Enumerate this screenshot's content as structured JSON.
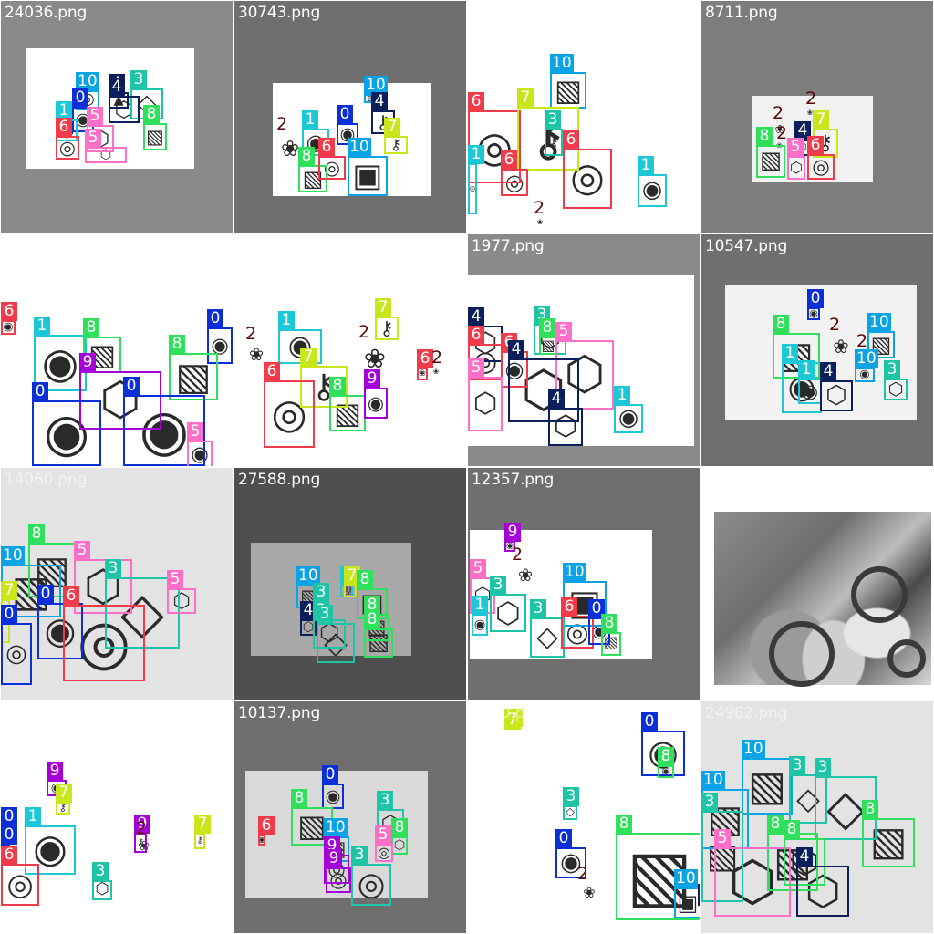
{
  "palette": {
    "0": "#0a2fd6",
    "1": "#1cc7d6",
    "2": "#5a0a0a",
    "3": "#1ec4a6",
    "4": "#0b1f5c",
    "5": "#ff6fc8",
    "6": "#ef3b4a",
    "7": "#c8e61a",
    "8": "#2ee05c",
    "9": "#a600d9",
    "10": "#0aa3e6"
  },
  "tiles": [
    {
      "file": "24036.png",
      "bg": "#8a8a8a",
      "paper": "#ffffff",
      "boxes": [
        {
          "c": "10",
          "d": "shell"
        },
        {
          "c": "4",
          "d": "rock"
        },
        {
          "c": "3",
          "d": "crystal"
        },
        {
          "c": "0",
          "d": "compass"
        },
        {
          "c": "4",
          "d": "gem"
        },
        {
          "c": "1",
          "d": "compass"
        },
        {
          "c": "5",
          "d": "gem"
        },
        {
          "c": "8",
          "d": "map"
        },
        {
          "c": "6",
          "d": "shell"
        },
        {
          "c": "5",
          "d": "gem"
        }
      ]
    },
    {
      "file": "30743.png",
      "bg": "#6f6f6f",
      "paper": "#ffffff",
      "boxes": [
        {
          "c": "10",
          "d": "map"
        },
        {
          "c": "4",
          "d": "key"
        },
        {
          "c": "2",
          "d": "coral"
        },
        {
          "c": "1",
          "d": "compass"
        },
        {
          "c": "0",
          "d": "compass"
        },
        {
          "c": "7",
          "d": "key"
        },
        {
          "c": "8",
          "d": "map"
        },
        {
          "c": "6",
          "d": "shell"
        },
        {
          "c": "10",
          "d": "chest"
        }
      ]
    },
    {
      "file": "3533.png",
      "bg": "#ffffff",
      "paper": "#ffffff",
      "boxes": [
        {
          "c": "10",
          "d": "map"
        },
        {
          "c": "6",
          "d": "shell"
        },
        {
          "c": "7",
          "d": "key"
        },
        {
          "c": "3",
          "d": "key"
        },
        {
          "c": "6",
          "d": "shell"
        },
        {
          "c": "1",
          "d": "compass"
        },
        {
          "c": "6",
          "d": "shell"
        },
        {
          "c": "1",
          "d": "shell"
        },
        {
          "c": "2",
          "d": "coral"
        }
      ]
    },
    {
      "file": "8711.png",
      "bg": "#7d7d7d",
      "paper": "#f2f2f2",
      "boxes": [
        {
          "c": "2",
          "d": "coral"
        },
        {
          "c": "2",
          "d": "coral"
        },
        {
          "c": "7",
          "d": "key"
        },
        {
          "c": "4",
          "d": "gem"
        },
        {
          "c": "2",
          "d": "coral"
        },
        {
          "c": "8",
          "d": "map"
        },
        {
          "c": "5",
          "d": "gem"
        },
        {
          "c": "6",
          "d": "shell"
        }
      ]
    },
    {
      "file": "5519.png",
      "bg": "#ffffff",
      "paper": "#ffffff",
      "boxes": [
        {
          "c": "6",
          "d": "compass"
        },
        {
          "c": "1",
          "d": "compass"
        },
        {
          "c": "8",
          "d": "map"
        },
        {
          "c": "0",
          "d": "compass"
        },
        {
          "c": "8",
          "d": "map"
        },
        {
          "c": "9",
          "d": "gem"
        },
        {
          "c": "0",
          "d": "compass"
        },
        {
          "c": "0",
          "d": "compass"
        },
        {
          "c": "5",
          "d": "compass"
        }
      ]
    },
    {
      "file": "8965.png",
      "bg": "#ffffff",
      "paper": "#ffffff",
      "boxes": [
        {
          "c": "1",
          "d": "compass"
        },
        {
          "c": "7",
          "d": "key"
        },
        {
          "c": "2",
          "d": "coral"
        },
        {
          "c": "2",
          "d": "coral"
        },
        {
          "c": "7",
          "d": "key"
        },
        {
          "c": "6",
          "d": "shell"
        },
        {
          "c": "8",
          "d": "map"
        },
        {
          "c": "9",
          "d": "compass"
        },
        {
          "c": "6",
          "d": "coral"
        },
        {
          "c": "2",
          "d": "coral"
        }
      ]
    },
    {
      "file": "1977.png",
      "bg": "#8a8a8a",
      "paper": "#ffffff",
      "boxes": [
        {
          "c": "4",
          "d": "gem"
        },
        {
          "c": "3",
          "d": "gem"
        },
        {
          "c": "6",
          "d": "shell"
        },
        {
          "c": "6",
          "d": "compass"
        },
        {
          "c": "8",
          "d": "map"
        },
        {
          "c": "5",
          "d": "gem"
        },
        {
          "c": "4",
          "d": "gem"
        },
        {
          "c": "5",
          "d": "gem"
        },
        {
          "c": "4",
          "d": "gem"
        },
        {
          "c": "1",
          "d": "compass"
        }
      ]
    },
    {
      "file": "10547.png",
      "bg": "#6f6f6f",
      "paper": "#f2f2f2",
      "boxes": [
        {
          "c": "0",
          "d": "compass"
        },
        {
          "c": "8",
          "d": "map"
        },
        {
          "c": "2",
          "d": "coral"
        },
        {
          "c": "10",
          "d": "map"
        },
        {
          "c": "2",
          "d": "coral"
        },
        {
          "c": "1",
          "d": "compass"
        },
        {
          "c": "10",
          "d": "compass"
        },
        {
          "c": "3",
          "d": "gem"
        },
        {
          "c": "1",
          "d": "compass"
        },
        {
          "c": "4",
          "d": "gem"
        }
      ]
    },
    {
      "file": "14060.png",
      "bg": "#e3e3e3",
      "paper": "#e3e3e3",
      "boxes": [
        {
          "c": "8",
          "d": "map"
        },
        {
          "c": "5",
          "d": "gem"
        },
        {
          "c": "10",
          "d": "map"
        },
        {
          "c": "3",
          "d": "crystal"
        },
        {
          "c": "5",
          "d": "gem"
        },
        {
          "c": "7",
          "d": "key"
        },
        {
          "c": "0",
          "d": "compass"
        },
        {
          "c": "6",
          "d": "shell"
        },
        {
          "c": "0",
          "d": "shell"
        }
      ]
    },
    {
      "file": "27588.png",
      "bg": "#4f4f4f",
      "paper": "#a8a8a8",
      "boxes": [
        {
          "c": "10",
          "d": "map"
        },
        {
          "c": "1",
          "d": "key"
        },
        {
          "c": "7",
          "d": "key"
        },
        {
          "c": "8",
          "d": "map"
        },
        {
          "c": "3",
          "d": "compass"
        },
        {
          "c": "4",
          "d": "gem"
        },
        {
          "c": "3",
          "d": "gem"
        },
        {
          "c": "8",
          "d": "map"
        },
        {
          "c": "3",
          "d": "crystal"
        },
        {
          "c": "8",
          "d": "map"
        }
      ]
    },
    {
      "file": "12357.png",
      "bg": "#6f6f6f",
      "paper": "#ffffff",
      "boxes": [
        {
          "c": "9",
          "d": "compass"
        },
        {
          "c": "2",
          "d": "coral"
        },
        {
          "c": "5",
          "d": "gem"
        },
        {
          "c": "3",
          "d": "gem"
        },
        {
          "c": "10",
          "d": "chest"
        },
        {
          "c": "1",
          "d": "compass"
        },
        {
          "c": "3",
          "d": "crystal"
        },
        {
          "c": "6",
          "d": "shell"
        },
        {
          "c": "0",
          "d": "compass"
        },
        {
          "c": "8",
          "d": "map"
        }
      ]
    },
    {
      "file": "33002.png",
      "bg": "#ffffff",
      "paper": "#ffffff",
      "photo": true,
      "boxes": []
    },
    {
      "file": "16462.png",
      "bg": "#ffffff",
      "paper": "#ffffff",
      "boxes": [
        {
          "c": "9",
          "d": "compass"
        },
        {
          "c": "7",
          "d": "key"
        },
        {
          "c": "0",
          "d": "key"
        },
        {
          "c": "1",
          "d": "compass"
        },
        {
          "c": "9",
          "d": "key"
        },
        {
          "c": "2",
          "d": "coral"
        },
        {
          "c": "7",
          "d": "key"
        },
        {
          "c": "0",
          "d": "shell"
        },
        {
          "c": "6",
          "d": "shell"
        },
        {
          "c": "3",
          "d": "gem"
        }
      ]
    },
    {
      "file": "10137.png",
      "bg": "#6f6f6f",
      "paper": "#d9d9d9",
      "boxes": [
        {
          "c": "0",
          "d": "compass"
        },
        {
          "c": "8",
          "d": "map"
        },
        {
          "c": "3",
          "d": "gem"
        },
        {
          "c": "8",
          "d": "gem"
        },
        {
          "c": "6",
          "d": "compass"
        },
        {
          "c": "10",
          "d": "map"
        },
        {
          "c": "9",
          "d": "shell"
        },
        {
          "c": "5",
          "d": "shell"
        },
        {
          "c": "9",
          "d": "shell"
        },
        {
          "c": "3",
          "d": "shell"
        }
      ]
    },
    {
      "file": "9640.png",
      "bg": "#ffffff",
      "paper": "#ffffff",
      "boxes": [
        {
          "c": "7",
          "d": "key"
        },
        {
          "c": "0",
          "d": "compass"
        },
        {
          "c": "8",
          "d": "compass"
        },
        {
          "c": "3",
          "d": "crystal"
        },
        {
          "c": "8",
          "d": "map"
        },
        {
          "c": "0",
          "d": "compass"
        },
        {
          "c": "2",
          "d": "coral"
        },
        {
          "c": "10",
          "d": "chest"
        },
        {
          "c": "4",
          "d": "compass"
        }
      ]
    },
    {
      "file": "24982.png",
      "bg": "#e3e3e3",
      "paper": "#e3e3e3",
      "boxes": [
        {
          "c": "10",
          "d": "map"
        },
        {
          "c": "3",
          "d": "crystal"
        },
        {
          "c": "10",
          "d": "map"
        },
        {
          "c": "3",
          "d": "crystal"
        },
        {
          "c": "8",
          "d": "map"
        },
        {
          "c": "3",
          "d": "map"
        },
        {
          "c": "8",
          "d": "map"
        },
        {
          "c": "5",
          "d": "gem"
        },
        {
          "c": "8",
          "d": "gem"
        },
        {
          "c": "4",
          "d": "gem"
        }
      ]
    }
  ]
}
